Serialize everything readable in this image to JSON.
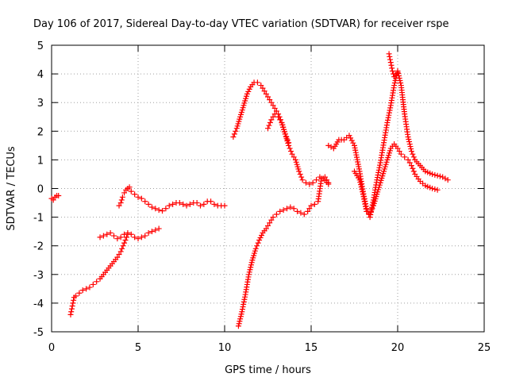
{
  "chart_data": {
    "type": "scatter",
    "title": "Day 106 of 2017, Sidereal Day-to-day VTEC variation (SDTVAR) for receiver rspe",
    "xlabel": "GPS time / hours",
    "ylabel": "SDTVAR / TECUs",
    "xlim": [
      0,
      25
    ],
    "ylim": [
      -5,
      5
    ],
    "x_ticks": [
      "0",
      "5",
      "10",
      "15",
      "20",
      "25"
    ],
    "y_ticks": [
      "5",
      "4",
      "3",
      "2",
      "1",
      "0",
      "-1",
      "-2",
      "-3",
      "-4",
      "-5"
    ],
    "grid": true,
    "marker": "plus",
    "colors": {
      "series": "#ff0000",
      "grid": "#a0a0a0",
      "axis": "#000000"
    },
    "series": [
      {
        "x": [
          0.0,
          0.1,
          0.2,
          0.3,
          0.4
        ],
        "y": [
          -0.35,
          -0.4,
          -0.3,
          -0.25,
          -0.25
        ]
      },
      {
        "x": [
          1.1,
          1.2,
          1.3,
          1.4,
          1.6,
          1.8,
          2.0,
          2.2,
          2.4,
          2.6,
          2.8,
          3.0,
          3.2,
          3.4,
          3.6,
          3.8,
          4.0,
          4.2,
          4.4
        ],
        "y": [
          -4.4,
          -4.1,
          -3.8,
          -3.75,
          -3.65,
          -3.55,
          -3.5,
          -3.45,
          -3.35,
          -3.25,
          -3.15,
          -3.0,
          -2.85,
          -2.7,
          -2.55,
          -2.4,
          -2.2,
          -1.9,
          -1.6
        ]
      },
      {
        "x": [
          2.8,
          3.0,
          3.2,
          3.4,
          3.6,
          3.8,
          4.0,
          4.2,
          4.4,
          4.6,
          4.8,
          5.0,
          5.2,
          5.4,
          5.6,
          5.8,
          6.0,
          6.2
        ],
        "y": [
          -1.7,
          -1.65,
          -1.6,
          -1.55,
          -1.65,
          -1.75,
          -1.7,
          -1.6,
          -1.55,
          -1.6,
          -1.7,
          -1.75,
          -1.7,
          -1.65,
          -1.55,
          -1.5,
          -1.45,
          -1.4
        ]
      },
      {
        "x": [
          3.9,
          4.0,
          4.1,
          4.2,
          4.3,
          4.4,
          4.5,
          4.6,
          4.8,
          5.0,
          5.2,
          5.4,
          5.6,
          5.8,
          6.0,
          6.2,
          6.4,
          6.6,
          6.8,
          7.0,
          7.2,
          7.4,
          7.6,
          7.8,
          8.0,
          8.2,
          8.4,
          8.6,
          8.8,
          9.0,
          9.2,
          9.4,
          9.6,
          9.8,
          10.0
        ],
        "y": [
          -0.6,
          -0.5,
          -0.3,
          -0.15,
          -0.05,
          0.0,
          0.05,
          -0.1,
          -0.2,
          -0.3,
          -0.35,
          -0.45,
          -0.55,
          -0.65,
          -0.7,
          -0.75,
          -0.78,
          -0.7,
          -0.6,
          -0.55,
          -0.5,
          -0.5,
          -0.55,
          -0.6,
          -0.55,
          -0.5,
          -0.5,
          -0.6,
          -0.55,
          -0.45,
          -0.45,
          -0.55,
          -0.6,
          -0.6,
          -0.6
        ]
      },
      {
        "x": [
          10.8,
          11.0,
          11.2,
          11.4,
          11.6,
          11.8,
          12.0,
          12.2,
          12.4,
          12.6,
          12.8,
          13.0,
          13.2,
          13.4,
          13.6,
          13.8,
          14.0,
          14.2,
          14.4,
          14.6,
          14.8,
          15.0,
          15.2,
          15.4,
          15.6,
          15.8,
          16.0
        ],
        "y": [
          -4.8,
          -4.3,
          -3.7,
          -3.0,
          -2.5,
          -2.1,
          -1.8,
          -1.55,
          -1.4,
          -1.2,
          -1.0,
          -0.9,
          -0.8,
          -0.75,
          -0.7,
          -0.65,
          -0.7,
          -0.8,
          -0.85,
          -0.9,
          -0.8,
          -0.6,
          -0.55,
          -0.45,
          0.35,
          0.4,
          0.2
        ]
      },
      {
        "x": [
          10.5,
          10.7,
          10.9,
          11.1,
          11.3,
          11.5,
          11.7,
          11.9,
          12.1,
          12.3,
          12.5,
          12.7,
          12.9,
          13.1,
          13.3,
          13.5,
          13.7,
          13.9,
          14.1,
          14.3,
          14.5,
          14.7,
          14.9,
          15.1,
          15.3,
          15.5,
          15.7,
          16.0
        ],
        "y": [
          1.8,
          2.1,
          2.5,
          2.9,
          3.3,
          3.55,
          3.7,
          3.7,
          3.6,
          3.4,
          3.2,
          3.0,
          2.8,
          2.6,
          2.3,
          1.9,
          1.5,
          1.2,
          1.0,
          0.6,
          0.3,
          0.2,
          0.15,
          0.2,
          0.3,
          0.4,
          0.35,
          0.15
        ]
      },
      {
        "x": [
          12.5,
          12.7,
          12.9,
          13.1,
          13.3,
          13.5,
          13.7
        ],
        "y": [
          2.1,
          2.4,
          2.6,
          2.5,
          2.3,
          1.9,
          1.6
        ]
      },
      {
        "x": [
          16.0,
          16.3,
          16.6,
          16.9,
          17.2,
          17.5,
          17.8,
          18.0,
          18.2,
          18.4,
          18.6,
          18.8,
          19.0,
          19.2,
          19.4,
          19.6,
          19.8,
          20.0,
          20.2,
          20.4,
          20.6,
          20.8,
          21.0,
          21.3,
          21.6,
          22.0,
          22.3,
          22.6,
          22.9
        ],
        "y": [
          1.5,
          1.4,
          1.7,
          1.7,
          1.85,
          1.5,
          0.6,
          -0.1,
          -0.7,
          -1.0,
          -0.4,
          0.3,
          0.9,
          1.6,
          2.3,
          2.9,
          3.6,
          4.1,
          3.6,
          2.6,
          1.8,
          1.3,
          1.0,
          0.8,
          0.6,
          0.5,
          0.45,
          0.4,
          0.3
        ]
      },
      {
        "x": [
          17.5,
          17.8,
          18.0,
          18.2,
          18.4,
          18.6,
          18.8,
          19.0,
          19.2,
          19.4,
          19.6,
          19.8,
          20.0,
          20.2,
          20.4,
          20.6,
          20.8,
          21.0,
          21.3,
          21.6,
          22.0,
          22.3
        ],
        "y": [
          0.6,
          0.3,
          -0.2,
          -0.8,
          -0.9,
          -0.6,
          -0.2,
          0.2,
          0.6,
          1.0,
          1.4,
          1.55,
          1.4,
          1.2,
          1.1,
          1.0,
          0.8,
          0.5,
          0.25,
          0.1,
          0.0,
          -0.05
        ]
      },
      {
        "x": [
          19.5,
          19.6,
          19.7,
          19.8,
          19.9,
          20.0
        ],
        "y": [
          4.7,
          4.4,
          4.1,
          3.9,
          3.95,
          4.05
        ]
      }
    ]
  }
}
